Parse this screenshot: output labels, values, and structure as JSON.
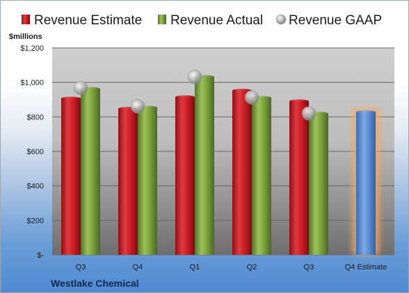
{
  "chart_data": {
    "type": "bar",
    "unit_label": "$millions",
    "company": "Westlake Chemical",
    "categories": [
      "Q3",
      "Q4",
      "Q1",
      "Q2",
      "Q3",
      "Q4 Estimate"
    ],
    "ylim": [
      0,
      1200
    ],
    "yticks": [
      0,
      200,
      400,
      600,
      800,
      1000,
      1200
    ],
    "ytick_labels": [
      "$-",
      "$200",
      "$400",
      "$600",
      "$800",
      "$1,000",
      "$1,200"
    ],
    "grid": true,
    "legend_position": "top",
    "series": [
      {
        "name": "Revenue Estimate",
        "kind": "bar",
        "color": "#d01f26",
        "values": [
          907,
          848,
          915,
          953,
          891,
          null
        ]
      },
      {
        "name": "Revenue Actual",
        "kind": "bar",
        "color": "#7ea43f",
        "values": [
          963,
          854,
          1032,
          911,
          819,
          null
        ]
      },
      {
        "name": "Revenue GAAP",
        "kind": "marker",
        "color": "#a0a0a0",
        "values": [
          968,
          861,
          1032,
          913,
          820,
          null
        ]
      },
      {
        "name": "Q4 Estimate",
        "kind": "highlight-bar",
        "color": "#5b8fd6",
        "glow": "#f3a862",
        "values": [
          null,
          null,
          null,
          null,
          null,
          827
        ]
      }
    ]
  }
}
